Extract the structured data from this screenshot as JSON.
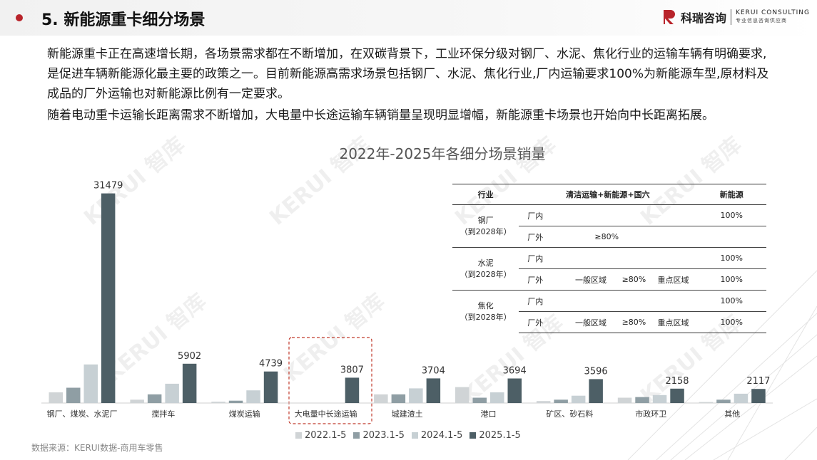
{
  "header": {
    "title": "5. 新能源重卡细分场景",
    "logo_cn": "科瑞咨询",
    "logo_en1": "KERUI CONSULTING",
    "logo_en2": "专业信息咨询供应商"
  },
  "body": {
    "para1": "新能源重卡正在高速增长期，各场景需求都在不断增加，在双碳背景下，工业环保分级对钢厂、水泥、焦化行业的运输车辆有明确要求,是促进车辆新能源化最主要的政策之一。目前新能源高需求场景包括钢厂、水泥、焦化行业,厂内运输要求100%为新能源车型,原材料及成品的厂外运输也对新能源比例有一定要求。",
    "para2": "随着电动重卡运输长距离需求不断增加，大电量中长途运输车辆销量呈现明显增幅，新能源重卡场景也开始向中长距离拓展。"
  },
  "watermark": "KERUI 智库",
  "policy_table": {
    "headers": [
      "行业",
      "清洁运输+新能源+国六",
      "新能源"
    ],
    "groups": [
      {
        "industry": "钢厂",
        "note": "（到2028年）",
        "rows": [
          {
            "scope": "厂内",
            "a": "",
            "b": "",
            "c": "",
            "d": "100%"
          },
          {
            "scope": "厂外",
            "a": "≥80%",
            "b": "",
            "c": "",
            "d": ""
          }
        ]
      },
      {
        "industry": "水泥",
        "note": "（到2028年）",
        "rows": [
          {
            "scope": "厂内",
            "a": "",
            "b": "",
            "c": "",
            "d": "100%"
          },
          {
            "scope": "厂外",
            "a": "一般区域",
            "b": "≥80%",
            "c": "重点区域",
            "d": "100%"
          }
        ]
      },
      {
        "industry": "焦化",
        "note": "（到2028年）",
        "rows": [
          {
            "scope": "厂内",
            "a": "",
            "b": "",
            "c": "",
            "d": "100%"
          },
          {
            "scope": "厂外",
            "a": "一般区域",
            "b": "≥80%",
            "c": "重点区域",
            "d": "100%"
          }
        ]
      }
    ]
  },
  "chart_data": {
    "type": "bar",
    "title": "2022年-2025年各细分场景销量",
    "categories": [
      "钢厂、煤炭、水泥厂",
      "搅拌车",
      "煤炭运输",
      "大电量中长途运输",
      "城建渣土",
      "港口",
      "矿区、砂石料",
      "市政环卫",
      "其他"
    ],
    "series": [
      {
        "name": "2022.1-5",
        "color": "#d0d4d6",
        "values": [
          1600,
          500,
          200,
          0,
          1300,
          2400,
          300,
          800,
          150
        ]
      },
      {
        "name": "2023.1-5",
        "color": "#8f9ea4",
        "values": [
          2300,
          1300,
          350,
          0,
          1300,
          800,
          500,
          900,
          500
        ]
      },
      {
        "name": "2024.1-5",
        "color": "#c7d0d4",
        "values": [
          5800,
          2900,
          1900,
          0,
          2200,
          1600,
          1100,
          1200,
          1400
        ]
      },
      {
        "name": "2025.1-5",
        "color": "#4d5f66",
        "values": [
          31479,
          5902,
          4739,
          3807,
          3704,
          3694,
          3596,
          2158,
          2117
        ]
      }
    ],
    "labeled_series": "2025.1-5",
    "highlight_category": "大电量中长途运输",
    "legend_position": "bottom",
    "ylim": [
      0,
      34000
    ],
    "grid": false
  },
  "source": "数据来源：KERUI数据-商用车零售"
}
